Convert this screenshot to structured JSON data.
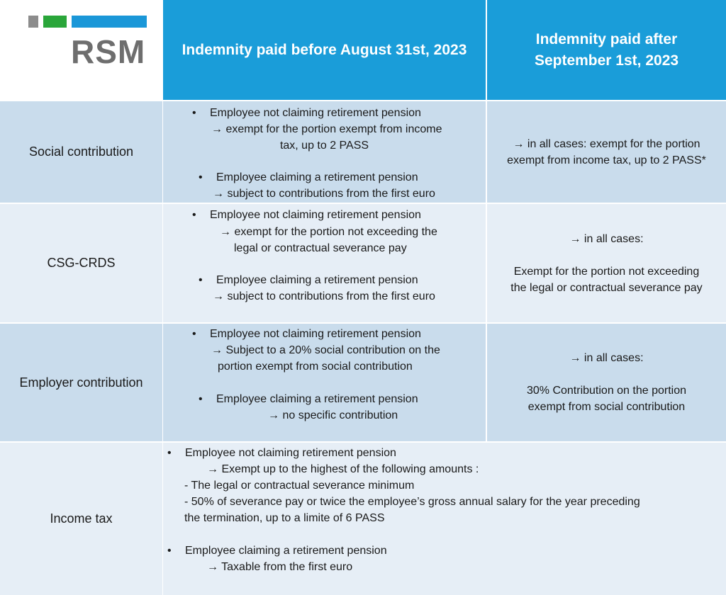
{
  "logo": {
    "text": "RSM",
    "colors": {
      "gray": "#8c8c8c",
      "green": "#2aa63a",
      "blue": "#1a97d8"
    }
  },
  "header": {
    "col1": "Indemnity paid before August 31st, 2023",
    "col2": "Indemnity paid after September 1st, 2023"
  },
  "colors": {
    "header_bg": "#1a9dd9",
    "row_dark": "#c9dcec",
    "row_light": "#e6eef6"
  },
  "rows": [
    {
      "label": "Social contribution",
      "before": {
        "b1": "Employee not claiming retirement pension",
        "b1_l1": "→ exempt for the portion exempt from income",
        "b1_l2": "tax, up to 2 PASS",
        "b2": "Employee claiming a retirement pension",
        "b2_l1": "→ subject to contributions from the first euro"
      },
      "after": {
        "l1": "→ in all cases: exempt for the portion",
        "l2": "exempt from income tax, up to 2 PASS*"
      }
    },
    {
      "label": "CSG-CRDS",
      "before": {
        "b1": "Employee not claiming retirement pension",
        "b1_l1": "→ exempt for the portion not exceeding the",
        "b1_l2": "legal or contractual severance pay",
        "b2": "Employee claiming a retirement pension",
        "b2_l1": "→ subject to contributions from the first euro"
      },
      "after": {
        "l1": "→ in all cases:",
        "l2": "Exempt for the portion not exceeding",
        "l3": "the legal or contractual severance pay"
      }
    },
    {
      "label": "Employer contribution",
      "before": {
        "b1": "Employee not claiming retirement pension",
        "b1_l1": "→ Subject to a 20% social contribution on the",
        "b1_l2": "portion exempt from social contribution",
        "b2": "Employee claiming a retirement pension",
        "b2_l1": "→ no specific contribution"
      },
      "after": {
        "l1": "→ in all cases:",
        "l2": "30% Contribution on the portion",
        "l3": "exempt from social contribution"
      }
    },
    {
      "label": "Income tax",
      "text": {
        "b1": "Employee not claiming retirement pension",
        "b1_l1": "→ Exempt up to the highest of the following amounts :",
        "b1_l2": "- The legal or contractual severance minimum",
        "b1_l3": "- 50% of severance pay or twice the employee’s gross annual salary for the year preceding",
        "b1_l4": "the termination, up to a limite of 6 PASS",
        "b2": "Employee claiming a retirement pension",
        "b2_l1": "→ Taxable from the first euro"
      }
    }
  ]
}
